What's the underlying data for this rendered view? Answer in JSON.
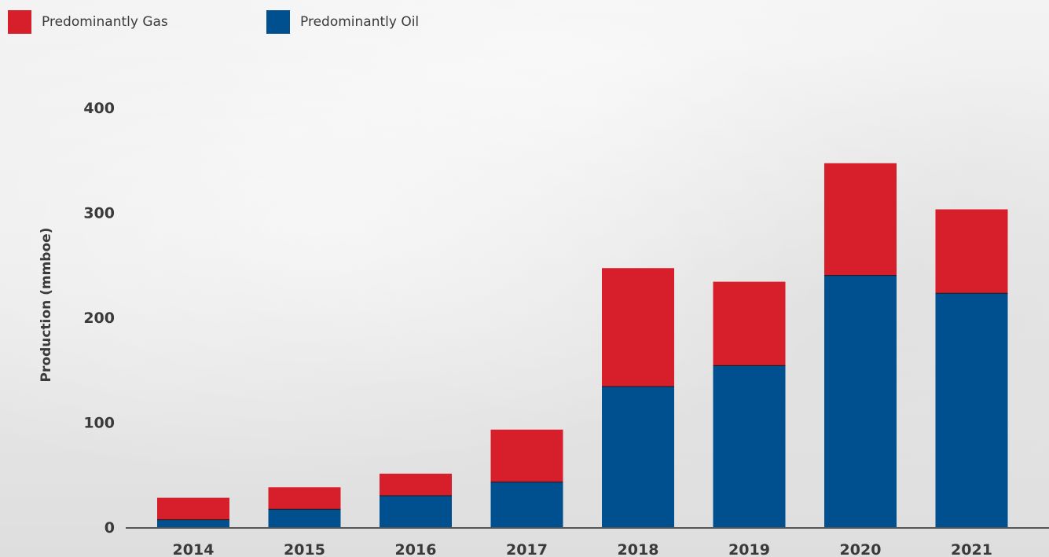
{
  "legend": {
    "gas_label": "Predominantly Gas",
    "oil_label": "Predominantly  Oil"
  },
  "colors": {
    "gas": "#d71f2b",
    "oil": "#00508f"
  },
  "chart_data": {
    "type": "bar",
    "stacked": true,
    "categories": [
      "2014",
      "2015",
      "2016",
      "2017",
      "2018",
      "2019",
      "2020",
      "2021"
    ],
    "series": [
      {
        "name": "Predominantly  Oil",
        "values": [
          7,
          17,
          30,
          43,
          134,
          154,
          240,
          223
        ]
      },
      {
        "name": "Predominantly Gas",
        "values": [
          21,
          21,
          21,
          50,
          113,
          80,
          107,
          80
        ]
      }
    ],
    "ylabel": "Production (mmboe)",
    "xlabel": "",
    "ylim": [
      0,
      400
    ],
    "yticks": [
      "0",
      "100",
      "200",
      "300",
      "400"
    ],
    "grid": false,
    "legend_position": "top-left"
  }
}
